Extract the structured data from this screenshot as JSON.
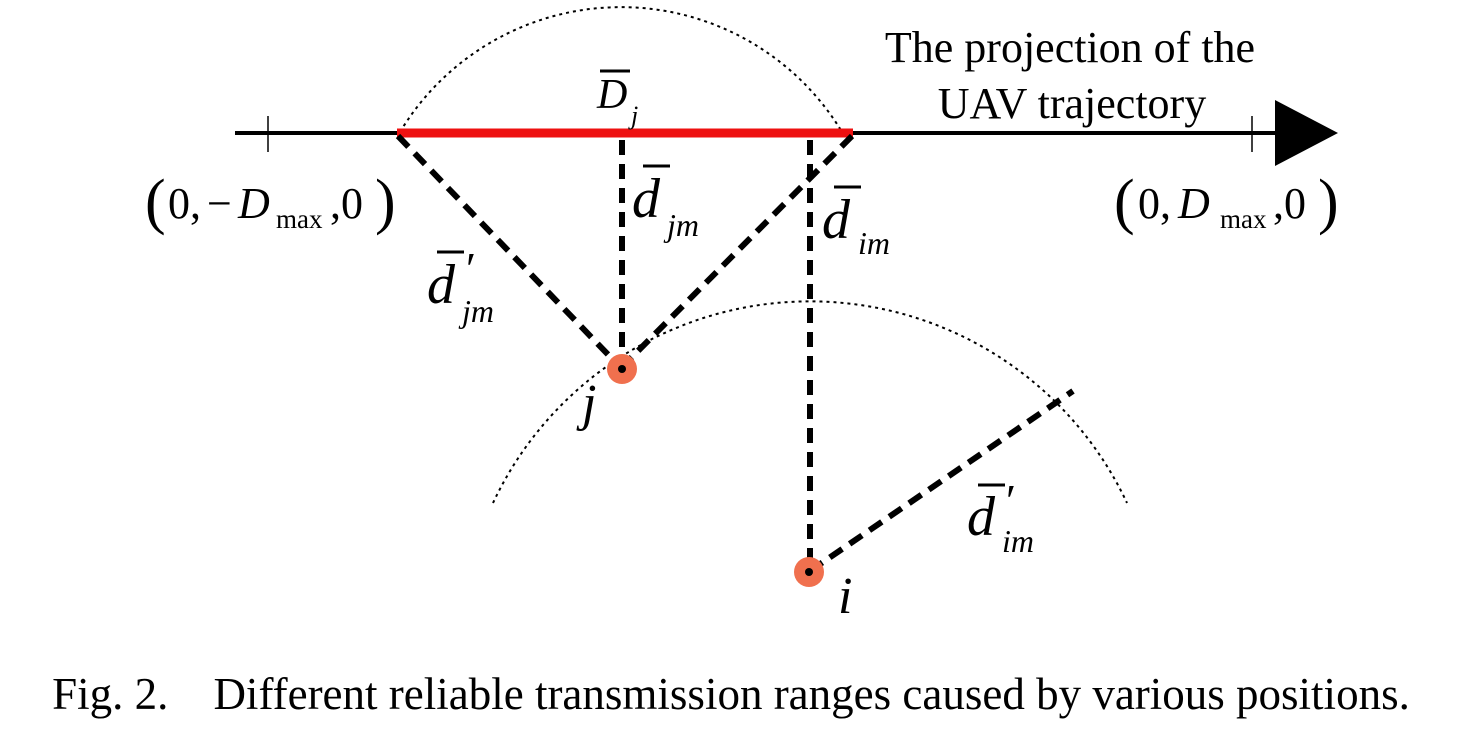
{
  "axis": {
    "title_line1": "The projection of the",
    "title_line2": "UAV trajectory",
    "left_endpoint": {
      "open": "(",
      "zero": "0,",
      "minus": "−",
      "D": "D",
      "sub": "max",
      "tail": ",0",
      "close": ")"
    },
    "right_endpoint": {
      "open": "(",
      "zero": "0,",
      "D": "D",
      "sub": "max",
      "tail": ",0",
      "close": ")"
    }
  },
  "segment_label": {
    "symbol": "D",
    "sub": "j"
  },
  "labels": {
    "d_jm": {
      "symbol": "d",
      "sub": "jm"
    },
    "d_im": {
      "symbol": "d",
      "sub": "im"
    },
    "d_prime_jm": {
      "symbol": "d",
      "prime": "′",
      "sub": "jm"
    },
    "d_prime_im": {
      "symbol": "d",
      "prime": "′",
      "sub": "im"
    }
  },
  "nodes": [
    {
      "id": "j",
      "label": "j"
    },
    {
      "id": "i",
      "label": "i"
    }
  ],
  "colors": {
    "segment": "#ee1111",
    "node": "#f0704e",
    "line": "#000000"
  },
  "caption": {
    "fig": "Fig. 2.",
    "text": "Different reliable transmission ranges caused by various positions."
  }
}
